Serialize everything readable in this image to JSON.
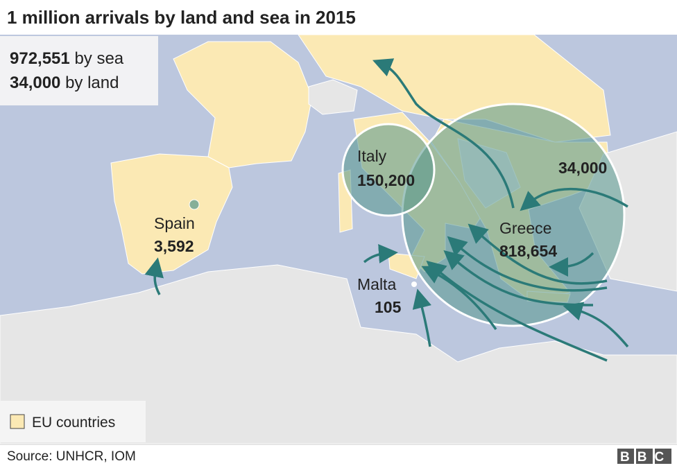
{
  "header": {
    "title": "1 million arrivals by land and sea in 2015"
  },
  "summary": [
    {
      "value": "972,551",
      "label": "by sea"
    },
    {
      "value": "34,000",
      "label": "by land"
    }
  ],
  "locations": [
    {
      "name": "Italy",
      "value": "150,200"
    },
    {
      "name": "Spain",
      "value": "3,592"
    },
    {
      "name": "Greece",
      "value": "818,654"
    },
    {
      "name": "Malta",
      "value": "105"
    }
  ],
  "land_route_label": "34,000",
  "legend": {
    "label": "EU countries"
  },
  "footer": {
    "source": "Source: UNHCR, IOM",
    "logo": "BBC"
  }
}
